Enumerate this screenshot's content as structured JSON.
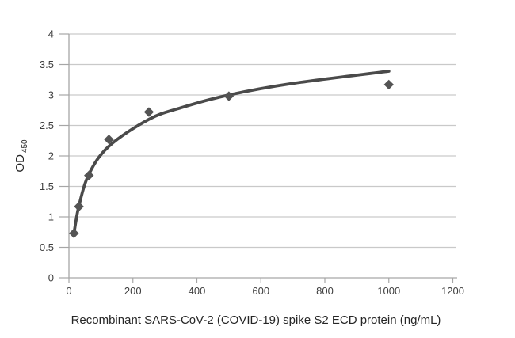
{
  "chart_data": {
    "type": "scatter",
    "title": "",
    "xlabel": "Recombinant SARS-CoV-2 (COVID-19) spike S2 ECD protein (ng/mL)",
    "ylabel": "OD",
    "ylabel_subscript": "450",
    "xlim": [
      0,
      1200
    ],
    "ylim": [
      0,
      4
    ],
    "x_ticks": [
      0,
      200,
      400,
      600,
      800,
      1000,
      1200
    ],
    "y_ticks": [
      0,
      0.5,
      1,
      1.5,
      2,
      2.5,
      3,
      3.5,
      4
    ],
    "grid": "horizontal-only",
    "legend": "none",
    "series": [
      {
        "name": "measured-od-points",
        "type": "scatter",
        "marker": "diamond",
        "color": "#545454",
        "points": [
          {
            "x": 15.6,
            "y": 0.73
          },
          {
            "x": 31.25,
            "y": 1.17
          },
          {
            "x": 62.5,
            "y": 1.68
          },
          {
            "x": 125,
            "y": 2.27
          },
          {
            "x": 250,
            "y": 2.72
          },
          {
            "x": 500,
            "y": 2.98
          },
          {
            "x": 1000,
            "y": 3.17
          }
        ]
      },
      {
        "name": "fitted-curve",
        "type": "line",
        "color": "#4a4a4a",
        "stroke_width": 3.8,
        "points": [
          {
            "x": 15.6,
            "y": 0.73
          },
          {
            "x": 31.25,
            "y": 1.18
          },
          {
            "x": 62.5,
            "y": 1.7
          },
          {
            "x": 125,
            "y": 2.16
          },
          {
            "x": 250,
            "y": 2.6
          },
          {
            "x": 350,
            "y": 2.79
          },
          {
            "x": 500,
            "y": 3.0
          },
          {
            "x": 700,
            "y": 3.19
          },
          {
            "x": 1000,
            "y": 3.39
          }
        ]
      }
    ],
    "colors": {
      "background": "#ffffff",
      "gridline": "#c9c9c9",
      "axis": "#a6a6a6",
      "tick_text": "#3f3f3f",
      "title_text": "#262626"
    }
  }
}
